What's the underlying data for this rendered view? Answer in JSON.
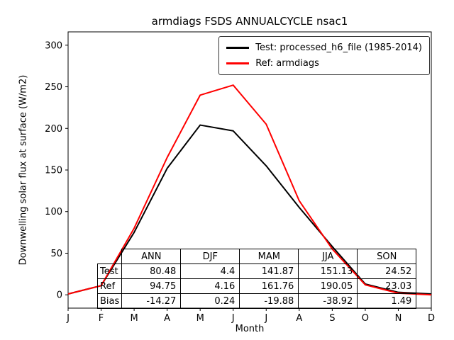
{
  "chart_data": {
    "type": "line",
    "title": "armdiags FSDS ANNUALCYCLE nsac1",
    "xlabel": "Month",
    "ylabel": "Downwelling solar flux at surface (W/m2)",
    "x_ticks": [
      "J",
      "F",
      "M",
      "A",
      "M",
      "J",
      "J",
      "A",
      "S",
      "O",
      "N",
      "D"
    ],
    "y_ticks": [
      0,
      50,
      100,
      150,
      200,
      250,
      300
    ],
    "ylim": [
      -16,
      316
    ],
    "grid": false,
    "legend_position": "upper right",
    "series": [
      {
        "name": "Test: processed_h6_file (1985-2014)",
        "color": "#000000",
        "values": [
          1,
          11,
          75,
          152,
          204,
          197,
          155,
          105,
          58,
          13,
          3,
          1
        ]
      },
      {
        "name": "Ref: armdiags",
        "color": "#ff0000",
        "values": [
          1,
          11,
          80,
          165,
          240,
          252,
          205,
          113,
          55,
          12,
          2,
          0
        ]
      }
    ]
  },
  "table": {
    "col_headers": [
      "ANN",
      "DJF",
      "MAM",
      "JJA",
      "SON"
    ],
    "rows": [
      {
        "label": "Test",
        "values": [
          "80.48",
          "4.4",
          "141.87",
          "151.13",
          "24.52"
        ]
      },
      {
        "label": "Ref",
        "values": [
          "94.75",
          "4.16",
          "161.76",
          "190.05",
          "23.03"
        ]
      },
      {
        "label": "Bias",
        "values": [
          "-14.27",
          "0.24",
          "-19.88",
          "-38.92",
          "1.49"
        ]
      }
    ]
  }
}
